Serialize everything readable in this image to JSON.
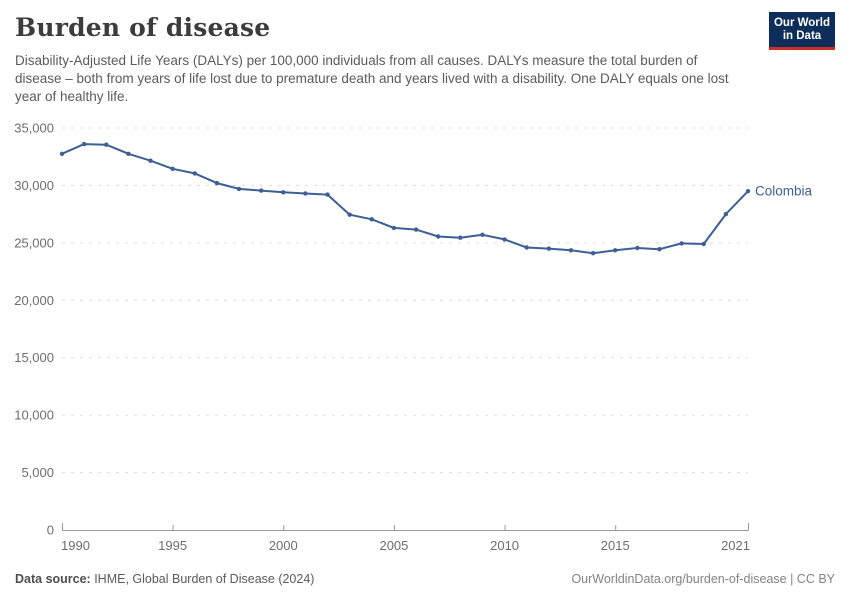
{
  "header": {
    "title": "Burden of disease",
    "subtitle": "Disability-Adjusted Life Years (DALYs) per 100,000 individuals from all causes. DALYs measure the total burden of disease – both from years of life lost due to premature death and years lived with a disability. One DALY equals one lost year of healthy life.",
    "logo": {
      "line1": "Our World",
      "line2": "in Data",
      "bg_color": "#0d2e5a",
      "accent_color": "#cf2d24"
    }
  },
  "chart_data": {
    "type": "line",
    "title": "Burden of disease",
    "xlabel": "",
    "ylabel": "",
    "grid": true,
    "legend_position": "end-of-line",
    "xlim": [
      1990,
      2021
    ],
    "ylim": [
      0,
      35000
    ],
    "yticks": [
      0,
      5000,
      10000,
      15000,
      20000,
      25000,
      30000,
      35000
    ],
    "ytick_labels": [
      "0",
      "5,000",
      "10,000",
      "15,000",
      "20,000",
      "25,000",
      "30,000",
      "35,000"
    ],
    "xticks": [
      1990,
      1995,
      2000,
      2005,
      2010,
      2015,
      2021
    ],
    "xtick_labels": [
      "1990",
      "1995",
      "2000",
      "2005",
      "2010",
      "2015",
      "2021"
    ],
    "series": [
      {
        "name": "Colombia",
        "color": "#3d5f96",
        "x": [
          1990,
          1991,
          1992,
          1993,
          1994,
          1995,
          1996,
          1997,
          1998,
          1999,
          2000,
          2001,
          2002,
          2003,
          2004,
          2005,
          2006,
          2007,
          2008,
          2009,
          2010,
          2011,
          2012,
          2013,
          2014,
          2015,
          2016,
          2017,
          2018,
          2019,
          2020,
          2021
        ],
        "values": [
          32750,
          33600,
          33550,
          32750,
          32150,
          31450,
          31050,
          30200,
          29700,
          29550,
          29400,
          29300,
          29200,
          27450,
          27050,
          26300,
          26150,
          25550,
          25450,
          25700,
          25300,
          24600,
          24500,
          24350,
          24100,
          24350,
          24550,
          24450,
          24950,
          24900,
          27500,
          29500
        ]
      }
    ],
    "colors": {
      "gridline": "#dcdcdc",
      "axis_line": "#999999",
      "tick_text": "#6e6e6e"
    }
  },
  "footer": {
    "source_label": "Data source:",
    "source_value": " IHME, Global Burden of Disease (2024)",
    "attribution": "OurWorldinData.org/burden-of-disease | CC BY"
  }
}
